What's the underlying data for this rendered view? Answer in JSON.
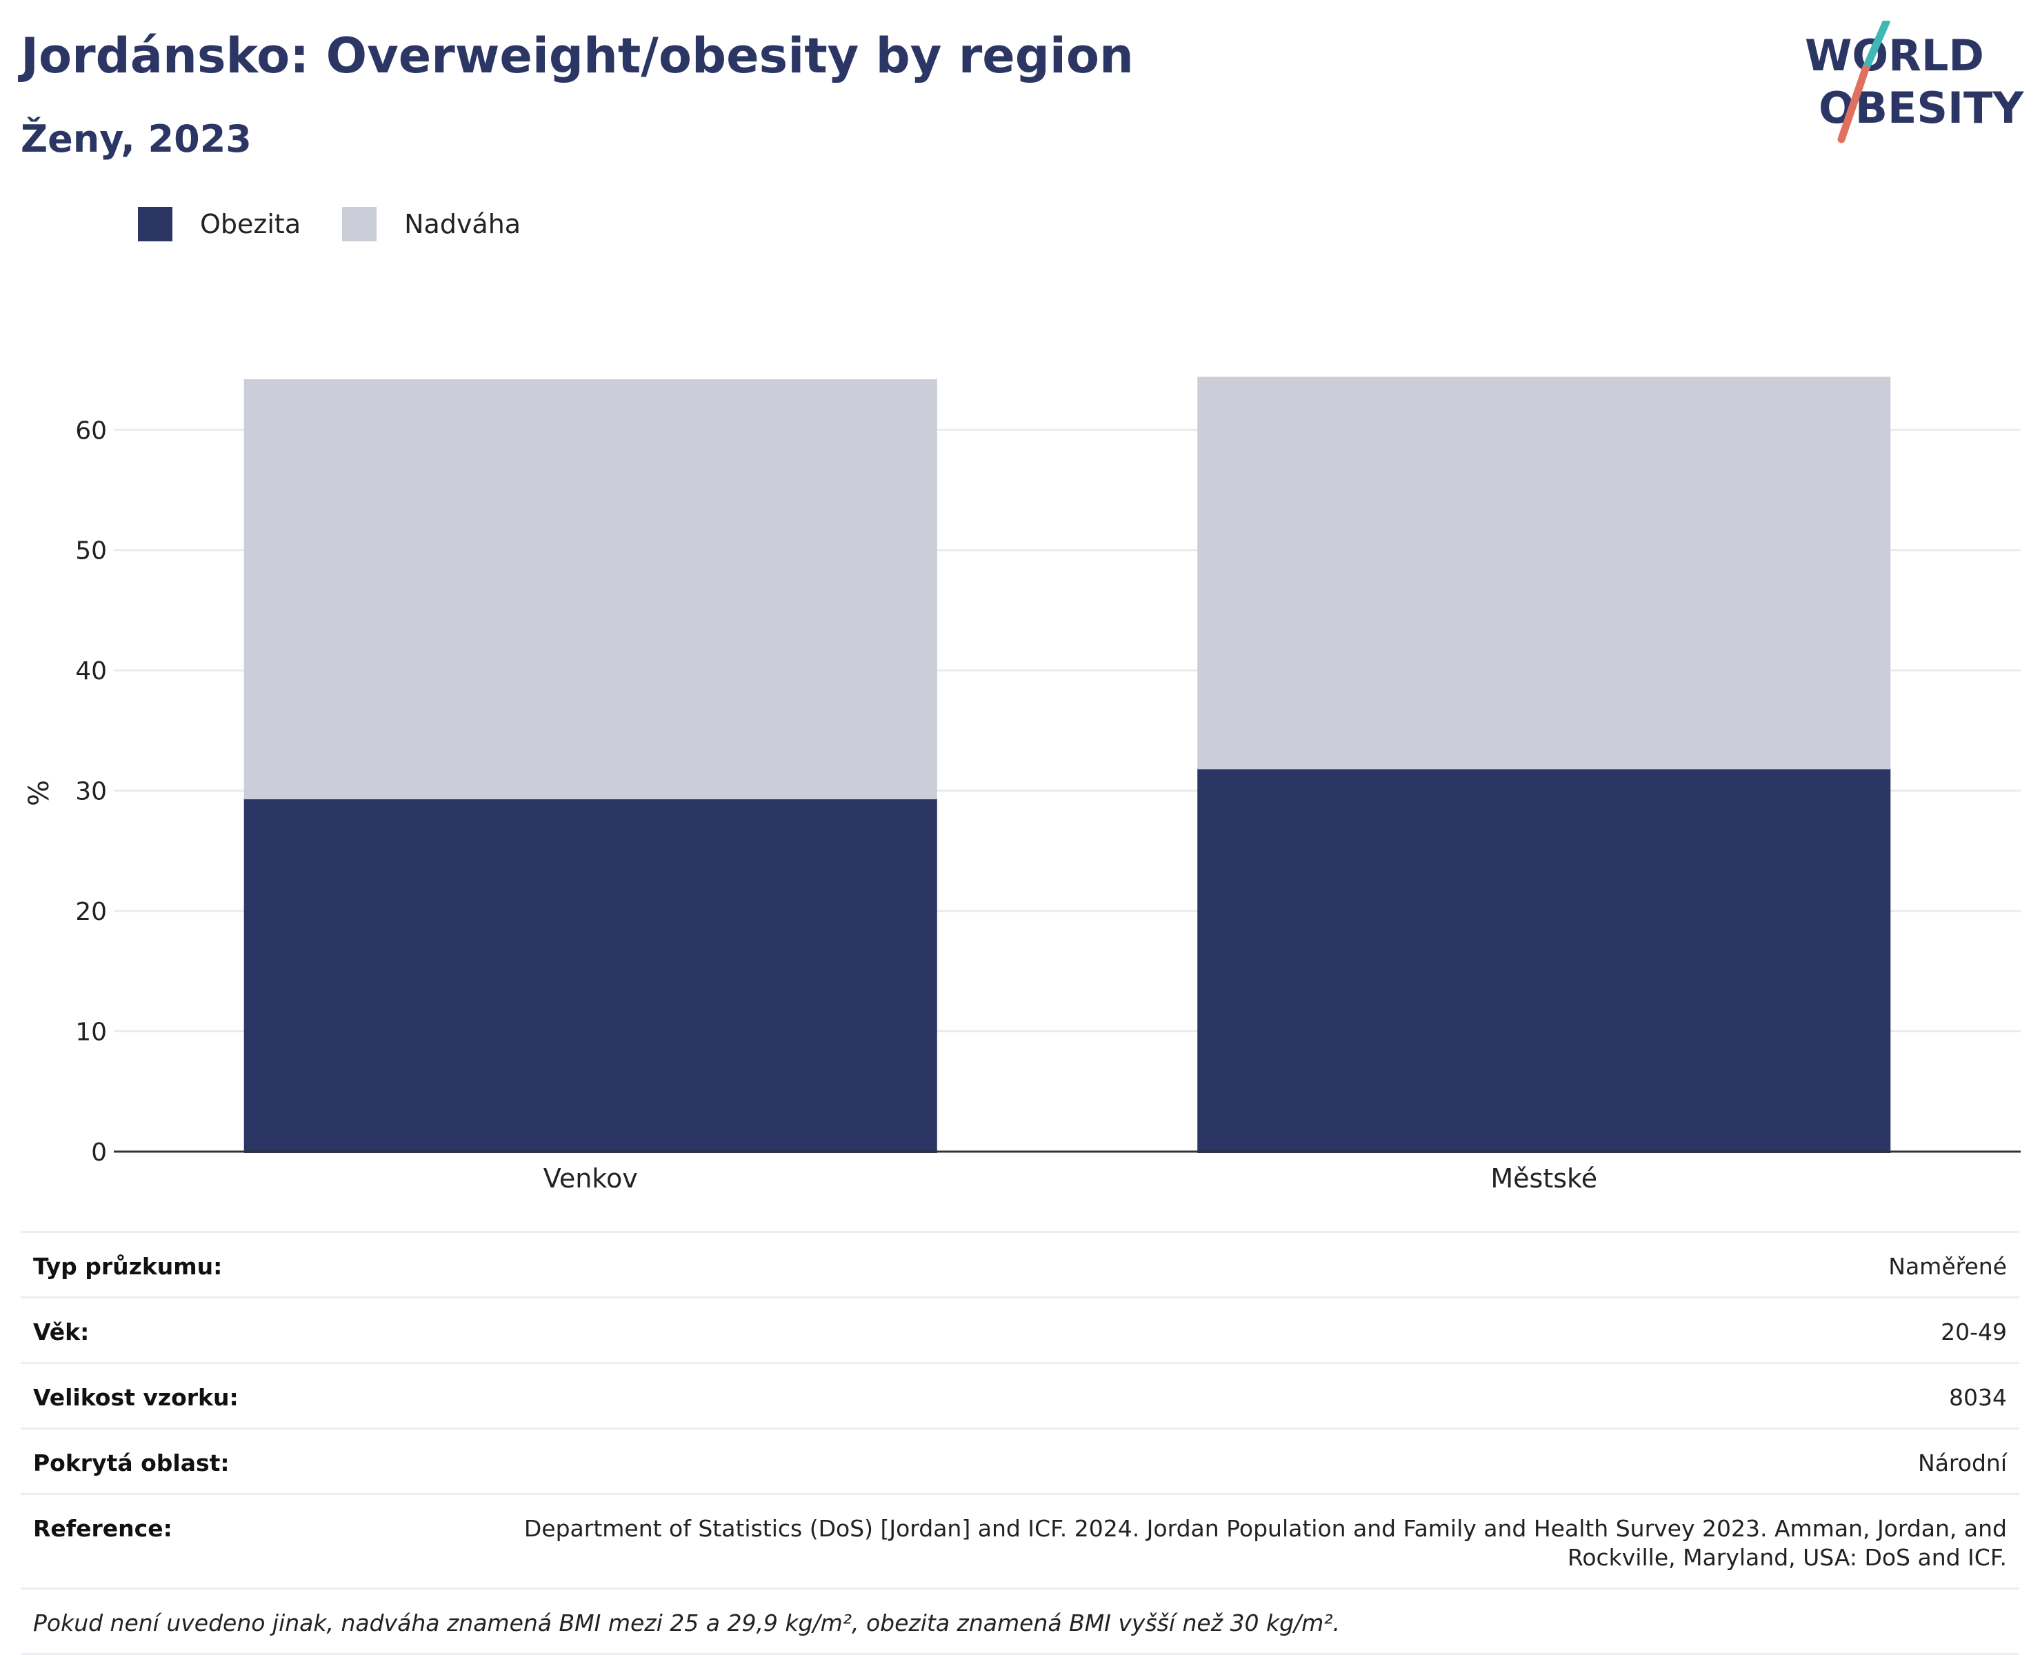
{
  "header": {
    "title": "Jordánsko: Overweight/obesity by region",
    "subtitle": "Ženy, 2023"
  },
  "logo": {
    "line1": "WORLD",
    "line2": "OBESITY",
    "accent_colors": [
      "#3fb8b5",
      "#e0705f"
    ],
    "text_color": "#2b3664"
  },
  "legend": [
    {
      "label": "Obezita",
      "color": "#2b3664"
    },
    {
      "label": "Nadváha",
      "color": "#cbcdd8"
    }
  ],
  "chart_data": {
    "type": "bar",
    "stacked": true,
    "categories": [
      "Venkov",
      "Městské"
    ],
    "series": [
      {
        "name": "Obezita",
        "color": "#2b3664",
        "values": [
          29.4,
          31.9
        ]
      },
      {
        "name": "Nadváha",
        "color": "#cbcdd8",
        "values": [
          34.8,
          32.5
        ]
      }
    ],
    "ylabel": "%",
    "xlabel": "",
    "ylim": [
      0,
      64.2
    ],
    "yticks": [
      0,
      10,
      20,
      30,
      40,
      50,
      60
    ],
    "grid": true
  },
  "meta": {
    "rows": [
      {
        "label": "Typ průzkumu:",
        "value": "Naměřené"
      },
      {
        "label": "Věk:",
        "value": "20-49"
      },
      {
        "label": "Velikost vzorku:",
        "value": "8034"
      },
      {
        "label": "Pokrytá oblast:",
        "value": "Národní"
      },
      {
        "label": "Reference:",
        "value": "Department of Statistics (DoS) [Jordan] and ICF. 2024. Jordan Population and Family and Health Survey 2023. Amman, Jordan, and Rockville, Maryland, USA: DoS and ICF."
      }
    ],
    "note": "Pokud není uvedeno jinak, nadváha znamená BMI mezi 25 a 29,9 kg/m², obezita znamená BMI vyšší než 30 kg/m²."
  }
}
